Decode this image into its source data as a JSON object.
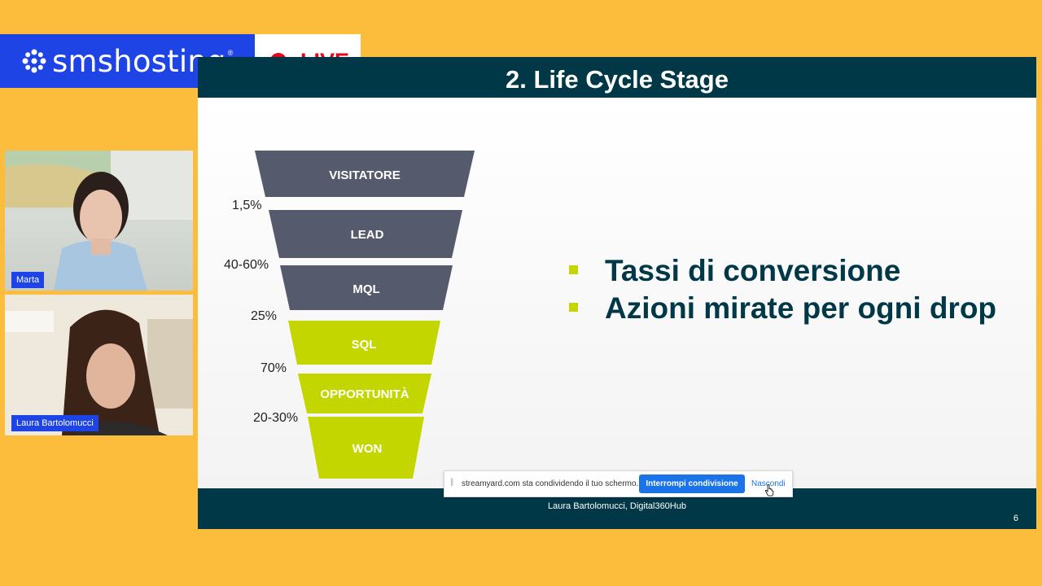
{
  "brand": {
    "name": "smshosting",
    "reg": "®",
    "logo_icon": "flower-dots-icon"
  },
  "live": {
    "label": "LIVE",
    "color": "#E3051B"
  },
  "participants": [
    {
      "name": "Marta"
    },
    {
      "name": "Laura Bartolomucci"
    }
  ],
  "slide": {
    "title": "2. Life Cycle Stage",
    "funnel": {
      "stages": [
        "VISITATORE",
        "LEAD",
        "MQL",
        "SQL",
        "OPPORTUNITÀ",
        "WON"
      ],
      "rates": [
        "1,5%",
        "40-60%",
        "25%",
        "70%",
        "20-30%"
      ],
      "colors": {
        "dark": "#565A6D",
        "green": "#C3D600"
      }
    },
    "bullets": [
      "Tassi di conversione",
      "Azioni mirate per ogni drop"
    ],
    "footer": "Laura Bartolomucci, Digital360Hub",
    "page_number": "6"
  },
  "share_bar": {
    "message": "streamyard.com sta condividendo il tuo schermo.",
    "stop_label": "Interrompi condivisione",
    "hide_label": "Nascondi"
  },
  "colors": {
    "background": "#FCBC3C",
    "brand_blue": "#1F44E6",
    "slide_header": "#003847"
  }
}
